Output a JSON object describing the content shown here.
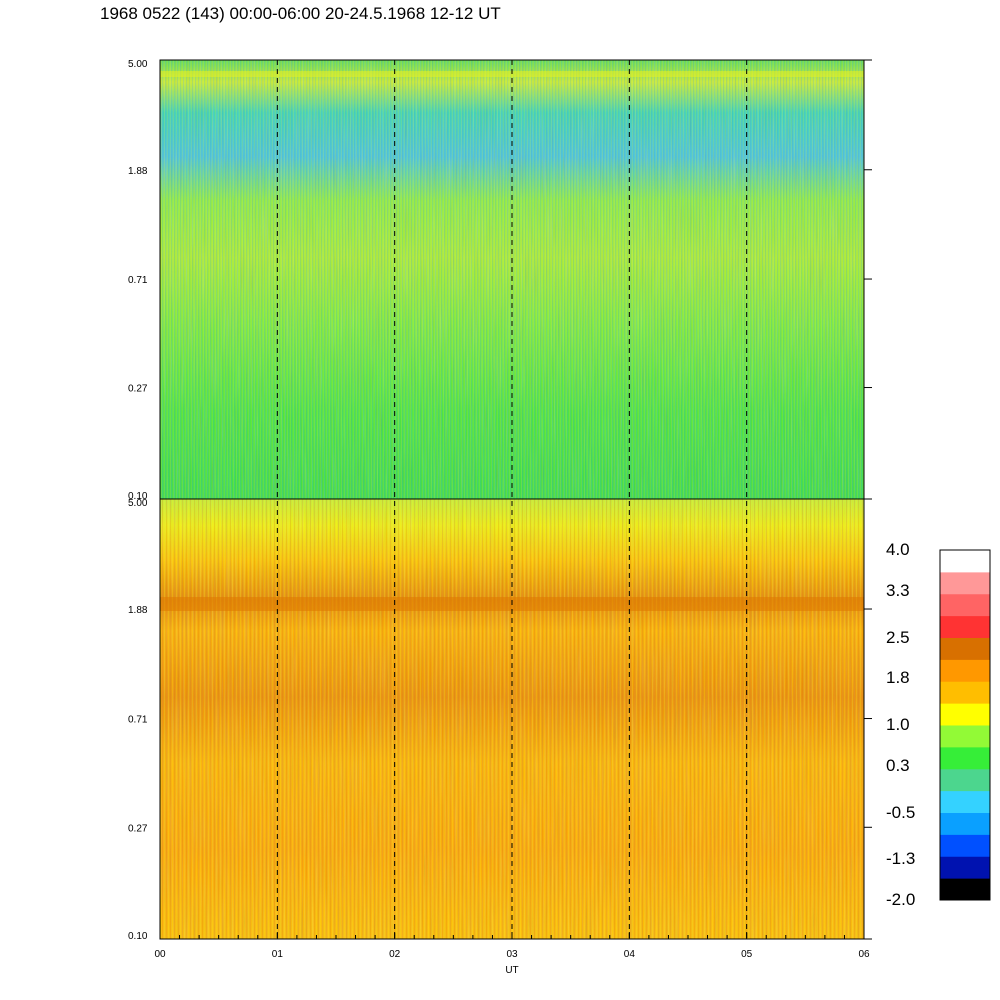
{
  "title": "1968 0522 (143) 00:00-06:00 20-24.5.1968  12-12 UT",
  "chart_data": [
    {
      "type": "heatmap",
      "panel": "upper",
      "y_ticks": [
        "5.00",
        "1.88",
        "0.71",
        "0.27",
        "0.10"
      ],
      "y_scale": "log",
      "ylim": [
        0.1,
        5.0
      ],
      "dominant_level": 0.3
    },
    {
      "type": "heatmap",
      "panel": "lower",
      "y_ticks": [
        "5.00",
        "1.88",
        "0.71",
        "0.27",
        "0.10"
      ],
      "y_scale": "log",
      "ylim": [
        0.1,
        5.0
      ],
      "dominant_level": 1.8
    }
  ],
  "x_axis": {
    "label": "UT",
    "ticks": [
      "00",
      "01",
      "02",
      "03",
      "04",
      "05",
      "06"
    ],
    "range": [
      0,
      6
    ],
    "hour_markers": [
      1,
      2,
      3,
      4,
      5
    ]
  },
  "colorbar": {
    "labels": [
      "4.0",
      "3.3",
      "2.5",
      "1.8",
      "1.0",
      "0.3",
      "-0.5",
      "-1.3",
      "-2.0"
    ],
    "range": [
      -2.0,
      4.0
    ],
    "colors": [
      "#000000",
      "#0012b0",
      "#0050ff",
      "#0aa0ff",
      "#34d2ff",
      "#4cd68e",
      "#36ee38",
      "#92fa36",
      "#ffff00",
      "#ffbe00",
      "#ff9800",
      "#d87000",
      "#ff3333",
      "#ff6464",
      "#ff9898",
      "#ffffff"
    ]
  }
}
